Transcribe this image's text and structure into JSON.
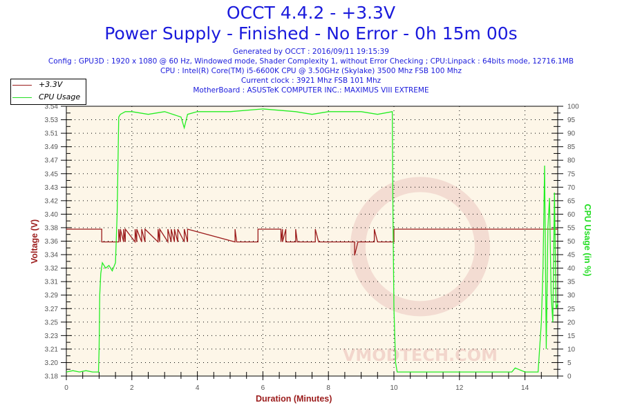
{
  "header": {
    "title": "OCCT 4.4.2 - +3.3V",
    "subtitle": "Power Supply - Finished - No Error - 0h 15m 00s",
    "generated": "Generated by OCCT : 2016/09/11 19:15:39",
    "config": "Config : GPU3D : 1920 x 1080 @ 60 Hz, Windowed mode, Shader Complexity 1, without Error Checking ; CPU:Linpack : 64bits mode, 12716.1MB",
    "cpu": "CPU : Intel(R) Core(TM) i5-6600K CPU @ 3.50GHz (Skylake) 3500 Mhz FSB 100 Mhz",
    "clock": "Current clock : 3921 Mhz FSB 101 Mhz",
    "motherboard": "MotherBoard : ASUSTeK COMPUTER INC.: MAXIMUS VIII EXTREME"
  },
  "legend": {
    "items": [
      {
        "label": "+3.3V",
        "color": "#9b1b1b"
      },
      {
        "label": "CPU Usage",
        "color": "#22dd22"
      }
    ]
  },
  "axes": {
    "x_title": "Duration (Minutes)",
    "y_left_title": "Voltage (V)",
    "y_right_title": "CPU Usage (in %)"
  },
  "colors": {
    "plot_bg": "#fdf6e8",
    "voltage": "#9b1b1b",
    "cpu": "#22ee22",
    "title": "#1a1adc"
  },
  "watermark": "VMODTECH.COM",
  "chart_data": {
    "type": "line",
    "title": "OCCT 4.4.2 - +3.3V",
    "subtitle": "Power Supply - Finished - No Error - 0h 15m 00s",
    "xlabel": "Duration (Minutes)",
    "ylabel": "Voltage (V)",
    "y2label": "CPU Usage (in %)",
    "xlim": [
      0,
      15
    ],
    "ylim": [
      3.18,
      3.54
    ],
    "y2lim": [
      0,
      100
    ],
    "x_ticks": [
      0,
      2,
      4,
      6,
      8,
      10,
      12,
      14
    ],
    "y_ticks": [
      "3.18",
      "3.20",
      "3.21",
      "3.23",
      "3.25",
      "3.27",
      "3.29",
      "3.31",
      "3.32",
      "3.34",
      "3.36",
      "3.38",
      "3.40",
      "3.42",
      "3.43",
      "3.45",
      "3.47",
      "3.49",
      "3.51",
      "3.53",
      "3.54"
    ],
    "y2_ticks": [
      0,
      5,
      10,
      15,
      20,
      25,
      30,
      35,
      40,
      45,
      50,
      55,
      60,
      65,
      70,
      75,
      80,
      85,
      90,
      95,
      100
    ],
    "grid": "dotted",
    "legend_position": "top-left outside",
    "series": [
      {
        "name": "+3.3V",
        "axis": "left",
        "x": [
          0,
          1.08,
          1.08,
          1.6,
          1.6,
          1.65,
          1.65,
          1.75,
          1.75,
          1.8,
          1.8,
          2.1,
          2.1,
          2.15,
          2.15,
          2.3,
          2.3,
          2.4,
          2.4,
          2.8,
          2.8,
          2.85,
          2.85,
          3.1,
          3.1,
          3.2,
          3.2,
          3.3,
          3.3,
          3.4,
          3.4,
          3.6,
          3.6,
          3.7,
          3.7,
          5.15,
          5.15,
          5.2,
          5.2,
          5.85,
          5.85,
          6.55,
          6.55,
          6.6,
          6.6,
          6.7,
          6.7,
          7.0,
          7.0,
          7.05,
          7.05,
          7.6,
          7.6,
          7.7,
          7.7,
          8.8,
          8.8,
          8.9,
          8.9,
          9.4,
          9.4,
          9.5,
          9.5,
          10.0,
          10.0,
          15
        ],
        "values": [
          3.376,
          3.376,
          3.359,
          3.359,
          3.376,
          3.359,
          3.376,
          3.359,
          3.376,
          3.359,
          3.376,
          3.359,
          3.376,
          3.359,
          3.376,
          3.359,
          3.376,
          3.359,
          3.376,
          3.359,
          3.376,
          3.359,
          3.376,
          3.359,
          3.376,
          3.359,
          3.376,
          3.359,
          3.376,
          3.359,
          3.376,
          3.359,
          3.376,
          3.359,
          3.376,
          3.359,
          3.376,
          3.359,
          3.359,
          3.359,
          3.376,
          3.376,
          3.359,
          3.376,
          3.359,
          3.376,
          3.359,
          3.359,
          3.376,
          3.359,
          3.359,
          3.359,
          3.376,
          3.359,
          3.359,
          3.359,
          3.341,
          3.359,
          3.359,
          3.359,
          3.376,
          3.359,
          3.359,
          3.359,
          3.376,
          3.376
        ]
      },
      {
        "name": "CPU Usage",
        "axis": "right",
        "x": [
          0,
          0.2,
          0.4,
          0.6,
          0.8,
          0.98,
          1.0,
          1.02,
          1.05,
          1.1,
          1.2,
          1.3,
          1.4,
          1.5,
          1.55,
          1.6,
          1.65,
          1.8,
          2.0,
          2.5,
          3.0,
          3.5,
          3.6,
          3.7,
          4.0,
          5.0,
          6.0,
          7.0,
          7.5,
          8.0,
          9.0,
          9.5,
          9.95,
          9.97,
          10.0,
          10.05,
          10.1,
          10.2,
          11,
          12,
          13,
          13.6,
          13.7,
          14.0,
          14.4,
          14.5,
          14.55,
          14.6,
          14.65,
          14.7,
          14.75,
          14.8,
          14.85,
          14.9,
          14.95,
          15.0
        ],
        "values": [
          1.5,
          2,
          1.5,
          2,
          1.5,
          1.5,
          10,
          30,
          38,
          42,
          40,
          41,
          39,
          42,
          60,
          96,
          97,
          98,
          98,
          97,
          98,
          96,
          92,
          97,
          98,
          98,
          99,
          98,
          97,
          98,
          98,
          97,
          98,
          60,
          25,
          5,
          1.5,
          1.5,
          1.5,
          1.5,
          1.5,
          1.5,
          3,
          1.5,
          1.5,
          20,
          40,
          78,
          10,
          55,
          66,
          30,
          20,
          68,
          25,
          27
        ]
      }
    ]
  }
}
